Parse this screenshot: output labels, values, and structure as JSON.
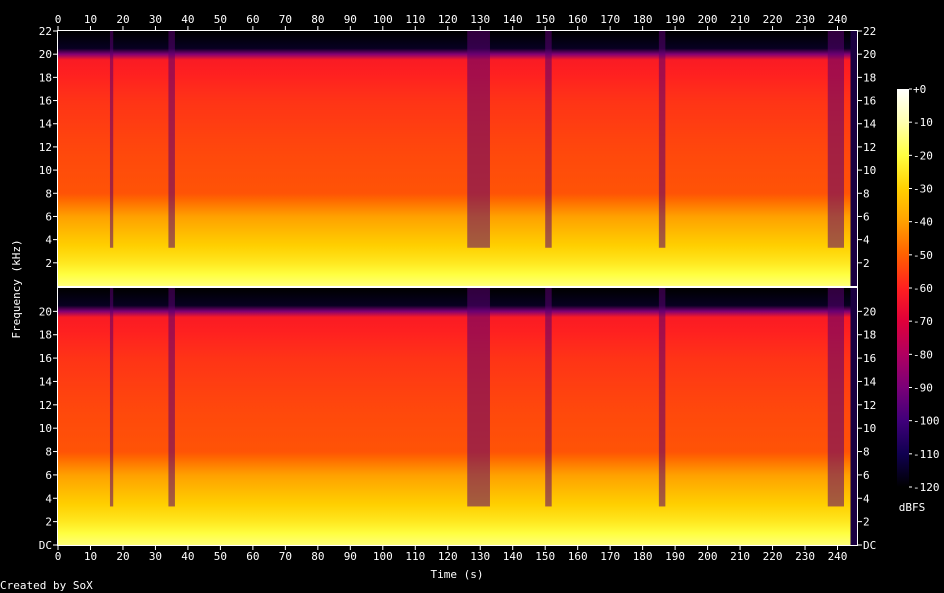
{
  "chart_data": {
    "type": "heatmap",
    "title": "",
    "xlabel": "Time (s)",
    "ylabel": "Frequency (kHz)",
    "colorbar_label": "dBFS",
    "credit": "Created by SoX",
    "xlim": [
      0,
      246
    ],
    "x_ticks": [
      0,
      10,
      20,
      30,
      40,
      50,
      60,
      70,
      80,
      90,
      100,
      110,
      120,
      130,
      140,
      150,
      160,
      170,
      180,
      190,
      200,
      210,
      220,
      230,
      240
    ],
    "ylim_khz": [
      0,
      22
    ],
    "y_ticks_top": [
      "2",
      "4",
      "6",
      "8",
      "10",
      "12",
      "14",
      "16",
      "18",
      "20",
      "22"
    ],
    "y_ticks_bottom": [
      "DC",
      "2",
      "4",
      "6",
      "8",
      "10",
      "12",
      "14",
      "16",
      "18",
      "20"
    ],
    "colorbar_ticks": [
      "+0",
      "-10",
      "-20",
      "-30",
      "-40",
      "-50",
      "-60",
      "-70",
      "-80",
      "-90",
      "-100",
      "-110",
      "-120"
    ],
    "channels": 2,
    "colormap": [
      "#ffffff",
      "#ffffb0",
      "#ffff40",
      "#ffd000",
      "#ffa000",
      "#ff6000",
      "#ff2020",
      "#e0003a",
      "#b00060",
      "#7a0078",
      "#40007a",
      "#100050",
      "#000000"
    ],
    "spectral_profile_dbfs": [
      {
        "freq_khz": 0,
        "level": -15
      },
      {
        "freq_khz": 2,
        "level": -25
      },
      {
        "freq_khz": 4,
        "level": -32
      },
      {
        "freq_khz": 6,
        "level": -40
      },
      {
        "freq_khz": 8,
        "level": -52
      },
      {
        "freq_khz": 12,
        "level": -54
      },
      {
        "freq_khz": 16,
        "level": -57
      },
      {
        "freq_khz": 19.8,
        "level": -62
      },
      {
        "freq_khz": 20.2,
        "level": -115
      },
      {
        "freq_khz": 22,
        "level": -120
      }
    ],
    "quiet_regions_s": [
      [
        16,
        17
      ],
      [
        34,
        36
      ],
      [
        126,
        133
      ],
      [
        150,
        152
      ],
      [
        185,
        187
      ],
      [
        237,
        242
      ]
    ],
    "track_end_s": 244
  }
}
